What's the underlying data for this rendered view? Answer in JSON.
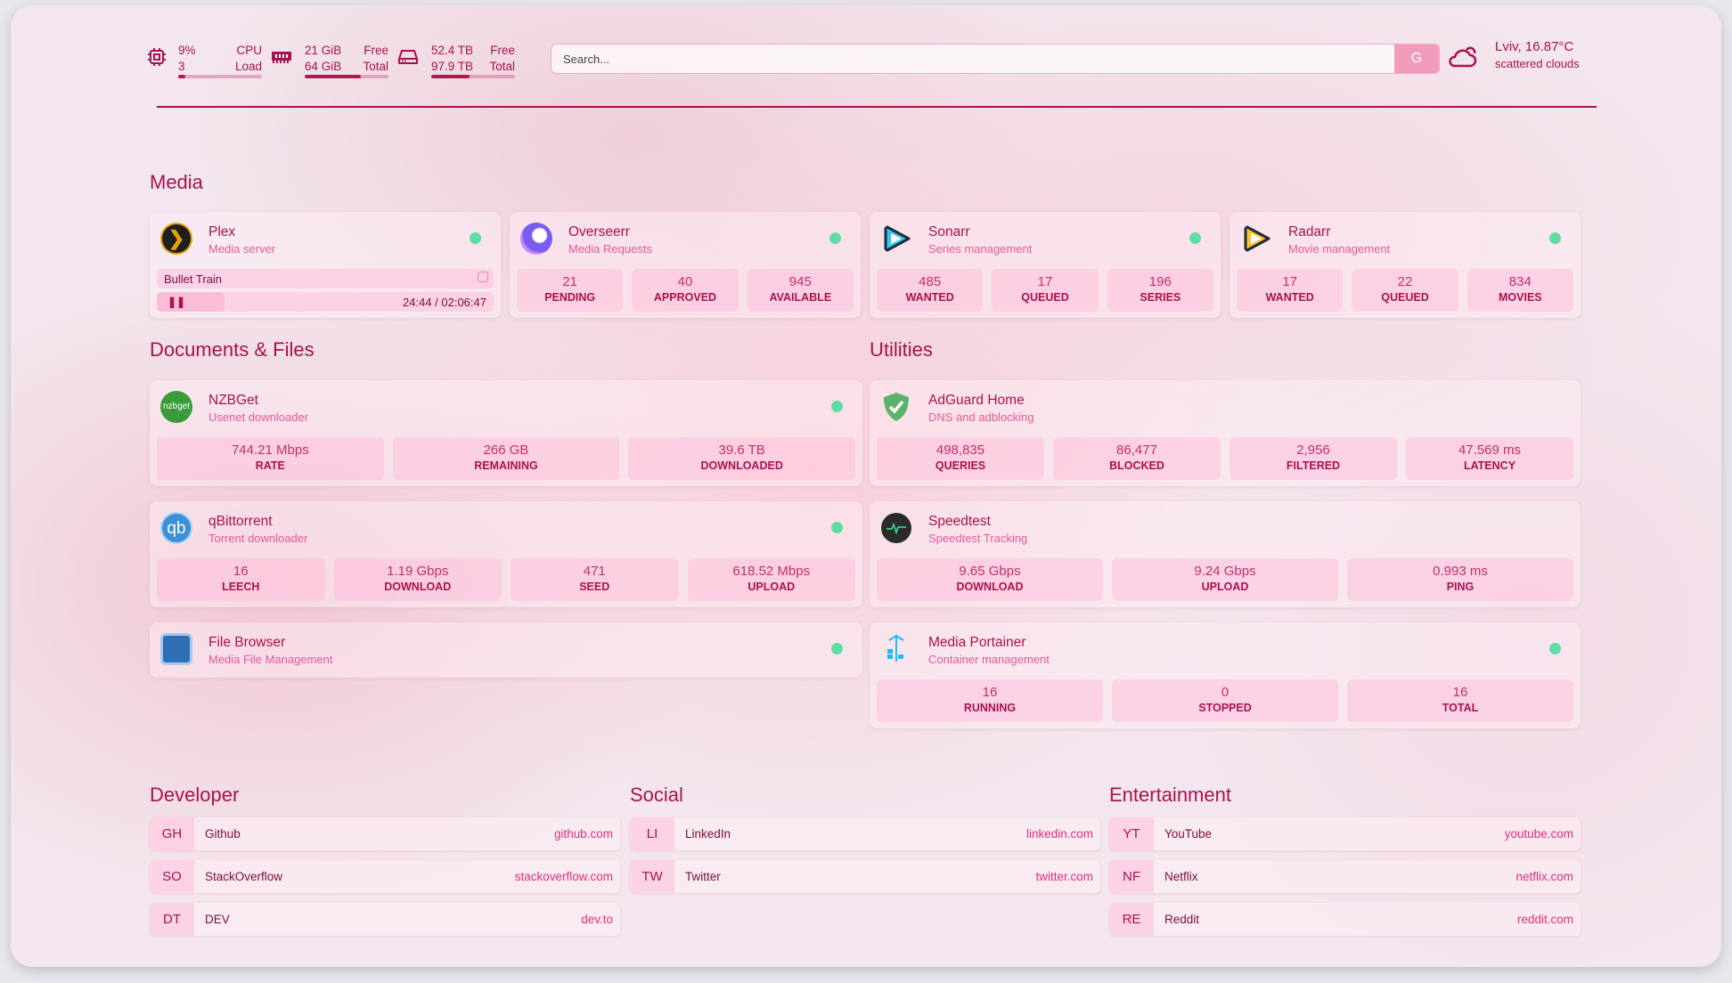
{
  "header": {
    "cpu": {
      "value": "9%",
      "label": "CPU",
      "sub_value": "3",
      "sub_label": "Load",
      "progress": 9
    },
    "memory": {
      "value": "21 GiB",
      "label": "Free",
      "sub_value": "64 GiB",
      "sub_label": "Total",
      "progress": 67
    },
    "disk": {
      "value": "52.4 TB",
      "label": "Free",
      "sub_value": "97.9 TB",
      "sub_label": "Total",
      "progress": 46
    },
    "search": {
      "placeholder": "Search...",
      "button": "G"
    },
    "weather": {
      "title": "Lviv, 16.87°C",
      "description": "scattered clouds",
      "icon": "cloud-icon"
    }
  },
  "colors": {
    "accent": "#a8124f",
    "subtitle": "#e45a97",
    "status_ok": "#5fdca4"
  },
  "media": {
    "title": "Media",
    "services": [
      {
        "name": "Plex",
        "desc": "Media server",
        "now_playing": "Bullet Train",
        "time": "24:44 / 02:06:47"
      },
      {
        "name": "Overseerr",
        "desc": "Media Requests",
        "stats": [
          [
            "21",
            "PENDING"
          ],
          [
            "40",
            "APPROVED"
          ],
          [
            "945",
            "AVAILABLE"
          ]
        ]
      },
      {
        "name": "Sonarr",
        "desc": "Series management",
        "stats": [
          [
            "485",
            "WANTED"
          ],
          [
            "17",
            "QUEUED"
          ],
          [
            "196",
            "SERIES"
          ]
        ]
      },
      {
        "name": "Radarr",
        "desc": "Movie management",
        "stats": [
          [
            "17",
            "WANTED"
          ],
          [
            "22",
            "QUEUED"
          ],
          [
            "834",
            "MOVIES"
          ]
        ]
      }
    ]
  },
  "docs": {
    "title": "Documents & Files",
    "services": [
      {
        "name": "NZBGet",
        "desc": "Usenet downloader",
        "logo_text": "nzbget",
        "stats": [
          [
            "744.21 Mbps",
            "RATE"
          ],
          [
            "266 GB",
            "REMAINING"
          ],
          [
            "39.6 TB",
            "DOWNLOADED"
          ]
        ]
      },
      {
        "name": "qBittorrent",
        "desc": "Torrent downloader",
        "logo_text": "qb",
        "stats": [
          [
            "16",
            "LEECH"
          ],
          [
            "1.19 Gbps",
            "DOWNLOAD"
          ],
          [
            "471",
            "SEED"
          ],
          [
            "618.52 Mbps",
            "UPLOAD"
          ]
        ]
      },
      {
        "name": "File Browser",
        "desc": "Media File Management"
      }
    ]
  },
  "utilities": {
    "title": "Utilities",
    "services": [
      {
        "name": "AdGuard Home",
        "desc": "DNS and adblocking",
        "stats": [
          [
            "498,835",
            "QUERIES"
          ],
          [
            "86,477",
            "BLOCKED"
          ],
          [
            "2,956",
            "FILTERED"
          ],
          [
            "47.569 ms",
            "LATENCY"
          ]
        ]
      },
      {
        "name": "Speedtest",
        "desc": "Speedtest Tracking",
        "stats": [
          [
            "9.65 Gbps",
            "DOWNLOAD"
          ],
          [
            "9.24 Gbps",
            "UPLOAD"
          ],
          [
            "0.993 ms",
            "PING"
          ]
        ]
      },
      {
        "name": "Media Portainer",
        "desc": "Container management",
        "stats": [
          [
            "16",
            "RUNNING"
          ],
          [
            "0",
            "STOPPED"
          ],
          [
            "16",
            "TOTAL"
          ]
        ]
      }
    ]
  },
  "bookmarks": [
    {
      "title": "Developer",
      "items": [
        [
          "GH",
          "Github",
          "github.com"
        ],
        [
          "SO",
          "StackOverflow",
          "stackoverflow.com"
        ],
        [
          "DT",
          "DEV",
          "dev.to"
        ]
      ]
    },
    {
      "title": "Social",
      "items": [
        [
          "LI",
          "LinkedIn",
          "linkedin.com"
        ],
        [
          "TW",
          "Twitter",
          "twitter.com"
        ]
      ]
    },
    {
      "title": "Entertainment",
      "items": [
        [
          "YT",
          "YouTube",
          "youtube.com"
        ],
        [
          "NF",
          "Netflix",
          "netflix.com"
        ],
        [
          "RE",
          "Reddit",
          "reddit.com"
        ]
      ]
    }
  ]
}
